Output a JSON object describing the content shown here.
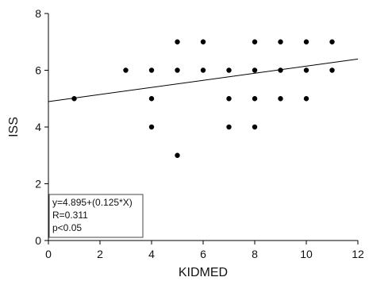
{
  "chart_data": {
    "type": "scatter",
    "xlabel": "KIDMED",
    "ylabel": "ISS",
    "xlim": [
      0,
      12
    ],
    "ylim": [
      0,
      8
    ],
    "xticks": [
      0,
      2,
      4,
      6,
      8,
      10,
      12
    ],
    "yticks": [
      0,
      2,
      4,
      6,
      8
    ],
    "points": [
      {
        "x": 1,
        "y": 5
      },
      {
        "x": 3,
        "y": 6
      },
      {
        "x": 4,
        "y": 6
      },
      {
        "x": 4,
        "y": 5
      },
      {
        "x": 4,
        "y": 4
      },
      {
        "x": 5,
        "y": 7
      },
      {
        "x": 5,
        "y": 6
      },
      {
        "x": 5,
        "y": 3
      },
      {
        "x": 6,
        "y": 7
      },
      {
        "x": 6,
        "y": 6
      },
      {
        "x": 7,
        "y": 6
      },
      {
        "x": 7,
        "y": 5
      },
      {
        "x": 7,
        "y": 4
      },
      {
        "x": 8,
        "y": 7
      },
      {
        "x": 8,
        "y": 6
      },
      {
        "x": 8,
        "y": 5
      },
      {
        "x": 8,
        "y": 4
      },
      {
        "x": 9,
        "y": 7
      },
      {
        "x": 9,
        "y": 6
      },
      {
        "x": 9,
        "y": 5
      },
      {
        "x": 10,
        "y": 7
      },
      {
        "x": 10,
        "y": 6
      },
      {
        "x": 10,
        "y": 5
      },
      {
        "x": 11,
        "y": 7
      },
      {
        "x": 11,
        "y": 6
      }
    ],
    "regression": {
      "intercept": 4.895,
      "slope": 0.125
    },
    "annotation": [
      "y=4.895+(0.125*X)",
      "R=0.311",
      "p<0.05"
    ],
    "grid": false,
    "colors": {
      "points": "#000000",
      "line": "#000000",
      "axis": "#000000"
    }
  }
}
